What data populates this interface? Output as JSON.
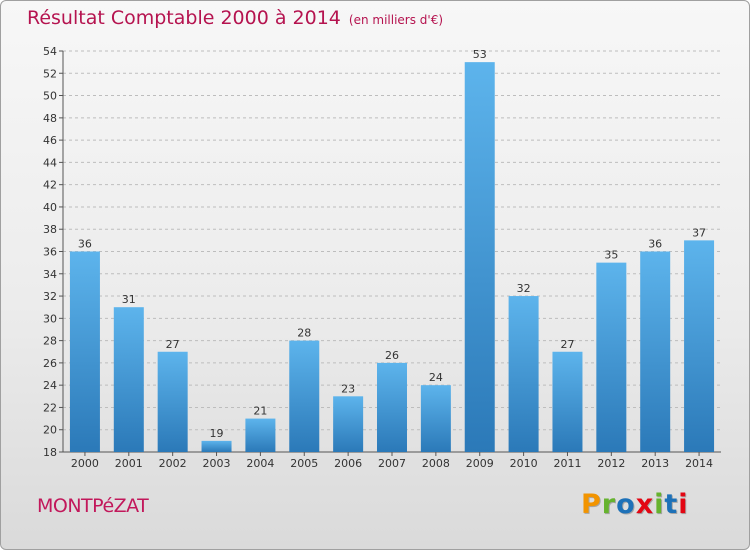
{
  "chart_data": {
    "type": "bar",
    "title": "Résultat Comptable 2000 à 2014",
    "subtitle": "(en milliers d'€)",
    "xlabel": "",
    "ylabel": "",
    "categories": [
      "2000",
      "2001",
      "2002",
      "2003",
      "2004",
      "2005",
      "2006",
      "2007",
      "2008",
      "2009",
      "2010",
      "2011",
      "2012",
      "2013",
      "2014"
    ],
    "values": [
      36,
      31,
      27,
      19,
      21,
      28,
      23,
      26,
      24,
      53,
      32,
      27,
      35,
      36,
      37
    ],
    "ylim": [
      18,
      54
    ],
    "yticks": [
      18,
      20,
      22,
      24,
      26,
      28,
      30,
      32,
      34,
      36,
      38,
      40,
      42,
      44,
      46,
      48,
      50,
      52,
      54
    ],
    "grid": true,
    "bar_color": "#3f97dc"
  },
  "commune": "MONTPéZAT",
  "logo": {
    "letters": [
      "P",
      "r",
      "o",
      "x",
      "i",
      "t",
      "i"
    ],
    "colors": [
      "#f29400",
      "#66b32e",
      "#1d71b8",
      "#e30613",
      "#66b32e",
      "#1d71b8",
      "#e30613"
    ]
  },
  "colors": {
    "title": "#b5134f",
    "commune": "#c2185b",
    "grid": "#bdbdbd"
  }
}
